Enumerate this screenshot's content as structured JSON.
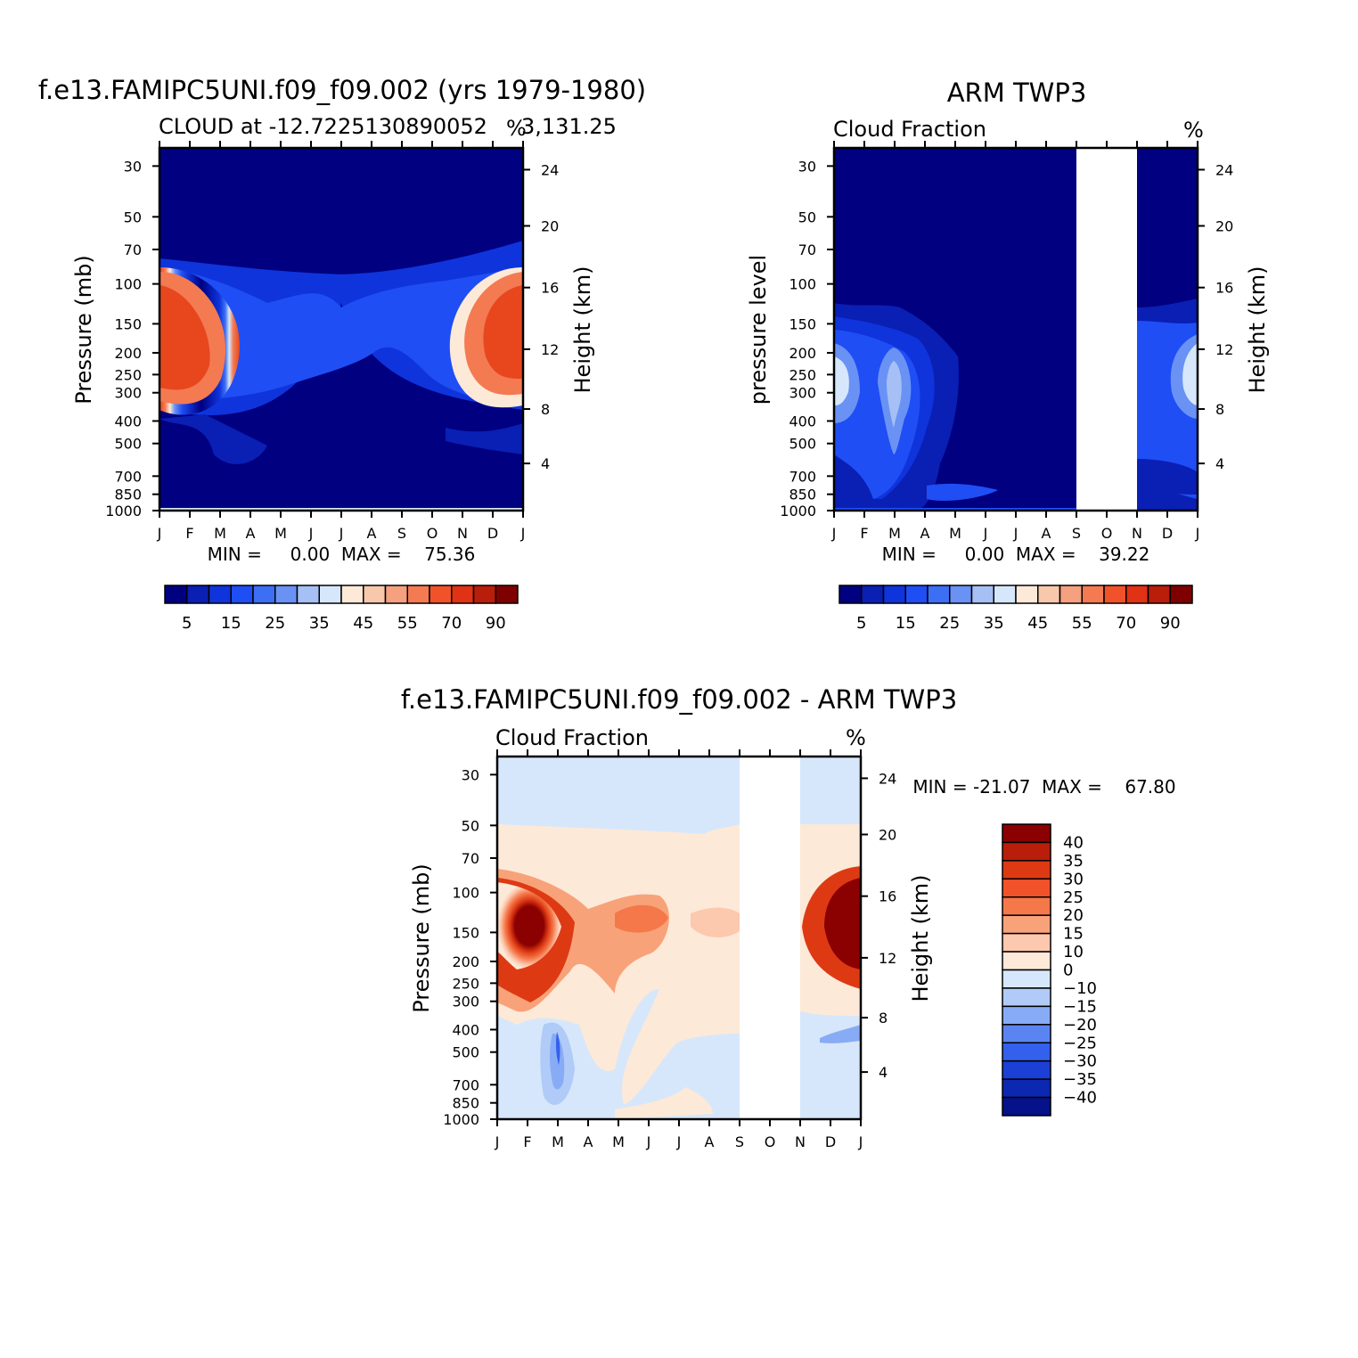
{
  "chart_data": [
    {
      "type": "heatmap",
      "title": "f.e13.FAMIPC5UNI.f09_f09.002 (yrs 1979-1980)",
      "subtitle_left": "CLOUD at -12.7225130890052",
      "subtitle_right": "3,131.25",
      "units": "%",
      "ylabel": "Pressure (mb)",
      "ylabel_right": "Height (km)",
      "x_ticks": [
        "J",
        "F",
        "M",
        "A",
        "M",
        "J",
        "J",
        "A",
        "S",
        "O",
        "N",
        "D",
        "J"
      ],
      "y_ticks": [
        "30",
        "50",
        "70",
        "100",
        "150",
        "200",
        "250",
        "300",
        "400",
        "500",
        "700",
        "850",
        "1000"
      ],
      "y_ticks_right": [
        "24",
        "20",
        "16",
        "12",
        "8",
        "4"
      ],
      "min_max": "MIN =     0.00  MAX =    75.36",
      "colorbar_labels": [
        "5",
        "15",
        "25",
        "35",
        "45",
        "55",
        "70",
        "90"
      ],
      "colorbar_colors": [
        "#000080",
        "#0a1fb4",
        "#0f34dc",
        "#1f4ef5",
        "#3d6ff5",
        "#6a92f5",
        "#a6c0f5",
        "#d6e7fb",
        "#fde9d8",
        "#f8c8ad",
        "#f5a07e",
        "#f47a52",
        "#f2522a",
        "#e03214",
        "#b81e0a",
        "#7f0000"
      ]
    },
    {
      "type": "heatmap",
      "title": "ARM TWP3",
      "subtitle_left": "Cloud Fraction",
      "subtitle_right": "%",
      "ylabel": "pressure level",
      "ylabel_right": "Height (km)",
      "x_ticks": [
        "J",
        "F",
        "M",
        "A",
        "M",
        "J",
        "J",
        "A",
        "S",
        "O",
        "N",
        "D",
        "J"
      ],
      "y_ticks": [
        "30",
        "50",
        "70",
        "100",
        "150",
        "200",
        "250",
        "300",
        "400",
        "500",
        "700",
        "850",
        "1000"
      ],
      "y_ticks_right": [
        "24",
        "20",
        "16",
        "12",
        "8",
        "4"
      ],
      "min_max": "MIN =     0.00  MAX =    39.22",
      "missing_months": [
        "S-N"
      ],
      "colorbar_labels": [
        "5",
        "15",
        "25",
        "35",
        "45",
        "55",
        "70",
        "90"
      ]
    },
    {
      "type": "heatmap",
      "title": "f.e13.FAMIPC5UNI.f09_f09.002 - ARM TWP3",
      "subtitle_left": "Cloud Fraction",
      "subtitle_right": "%",
      "ylabel": "Pressure (mb)",
      "ylabel_right": "Height (km)",
      "x_ticks": [
        "J",
        "F",
        "M",
        "A",
        "M",
        "J",
        "J",
        "A",
        "S",
        "O",
        "N",
        "D",
        "J"
      ],
      "y_ticks": [
        "30",
        "50",
        "70",
        "100",
        "150",
        "200",
        "250",
        "300",
        "400",
        "500",
        "700",
        "850",
        "1000"
      ],
      "y_ticks_right": [
        "24",
        "20",
        "16",
        "12",
        "8",
        "4"
      ],
      "min_max": "MIN = -21.07  MAX =    67.80",
      "colorbar_labels": [
        "40",
        "35",
        "30",
        "25",
        "20",
        "15",
        "10",
        "0",
        "-10",
        "-15",
        "-20",
        "-25",
        "-30",
        "-35",
        "-40"
      ],
      "colorbar_colors": [
        "#8b0000",
        "#b81e0a",
        "#dd3a14",
        "#f2522a",
        "#f5784a",
        "#f8a27a",
        "#fcc8ae",
        "#fde9d8",
        "#d6e7fb",
        "#b0cbf7",
        "#88abf5",
        "#5a84f2",
        "#3460ee",
        "#1c3fd6",
        "#0c27b0",
        "#05128a"
      ]
    }
  ]
}
